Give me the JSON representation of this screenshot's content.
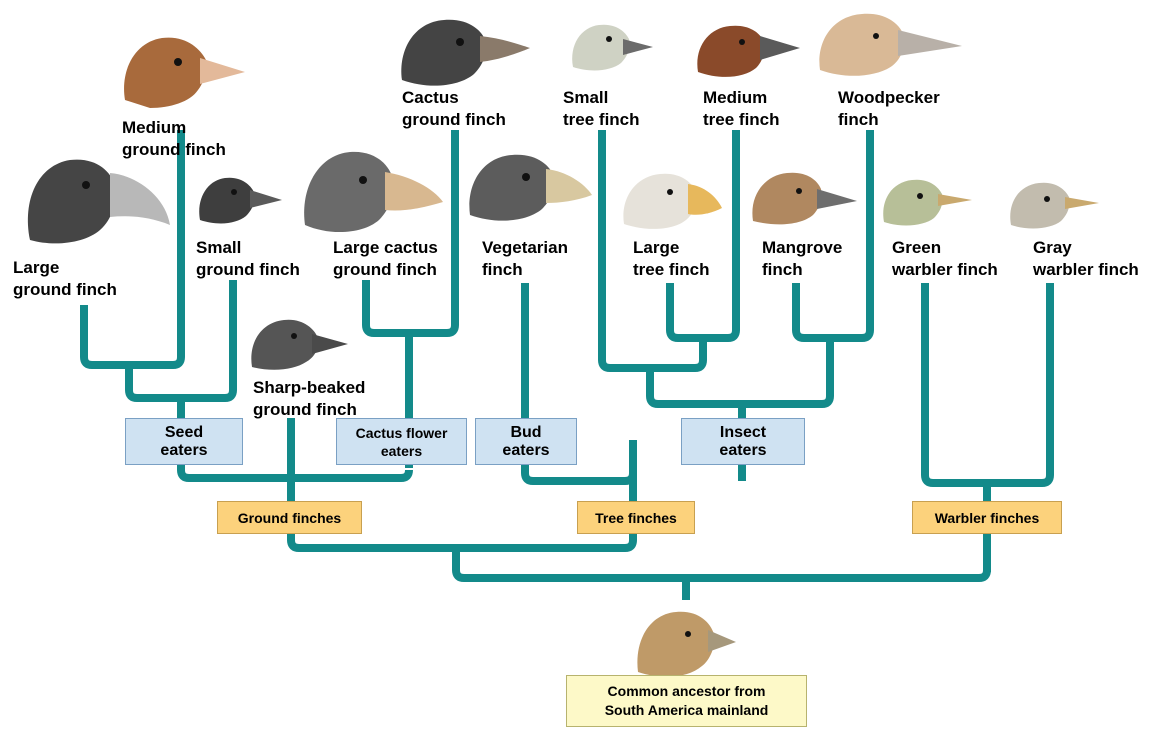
{
  "finches": {
    "medium_ground": [
      "Medium",
      "ground finch"
    ],
    "large_ground": [
      "Large",
      "ground finch"
    ],
    "small_ground": [
      "Small",
      "ground finch"
    ],
    "large_cactus": [
      "Large cactus",
      "ground finch"
    ],
    "cactus_ground": [
      "Cactus",
      "ground finch"
    ],
    "sharp_beaked": [
      "Sharp-beaked",
      "ground finch"
    ],
    "vegetarian": [
      "Vegetarian",
      "finch"
    ],
    "small_tree": [
      "Small",
      "tree finch"
    ],
    "large_tree": [
      "Large",
      "tree finch"
    ],
    "medium_tree": [
      "Medium",
      "tree finch"
    ],
    "mangrove": [
      "Mangrove",
      "finch"
    ],
    "woodpecker": [
      "Woodpecker",
      "finch"
    ],
    "green_warbler": [
      "Green",
      "warbler finch"
    ],
    "gray_warbler": [
      "Gray",
      "warbler finch"
    ]
  },
  "diet_groups": {
    "seed": [
      "Seed",
      "eaters"
    ],
    "cactus_flower": [
      "Cactus flower",
      "eaters"
    ],
    "bud": [
      "Bud",
      "eaters"
    ],
    "insect": [
      "Insect",
      "eaters"
    ]
  },
  "clades": {
    "ground": "Ground finches",
    "tree": "Tree finches",
    "warbler": "Warbler finches"
  },
  "ancestor": [
    "Common ancestor from",
    "South America mainland"
  ],
  "colors": {
    "branch": "#138a8a",
    "diet_box": "#cfe2f2",
    "clade_box": "#fcd27c",
    "ancestor_box": "#fdf9c8"
  }
}
